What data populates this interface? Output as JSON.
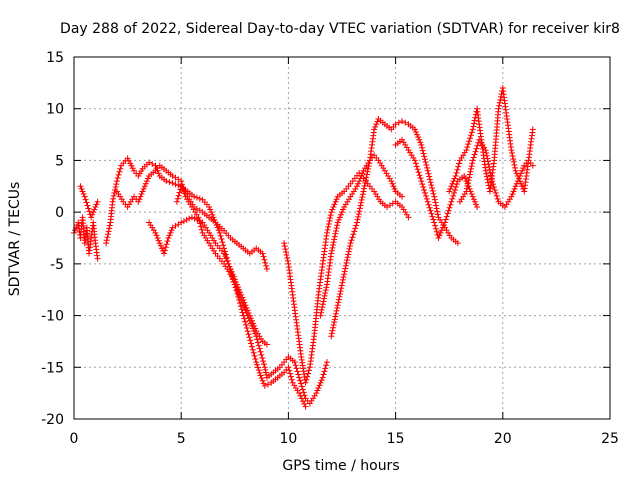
{
  "chart_data": {
    "type": "scatter",
    "title": "Day 288 of 2022, Sidereal Day-to-day VTEC variation (SDTVAR) for receiver kir8",
    "xlabel": "GPS time / hours",
    "ylabel": "SDTVAR / TECUs",
    "xlim": [
      0,
      25
    ],
    "ylim": [
      -20,
      15
    ],
    "xticks": [
      0,
      5,
      10,
      15,
      20,
      25
    ],
    "yticks": [
      -20,
      -15,
      -10,
      -5,
      0,
      5,
      10,
      15
    ],
    "xtick_labels": [
      "0",
      "5",
      "10",
      "15",
      "20",
      "25"
    ],
    "ytick_labels": [
      "-20",
      "-15",
      "-10",
      "-5",
      "0",
      "5",
      "10",
      "15"
    ],
    "grid": true,
    "marker": "plus",
    "color": "#ff0000",
    "series": [
      {
        "values": [
          [
            0.0,
            -2.0
          ],
          [
            0.2,
            -1.0
          ],
          [
            0.3,
            -2.5
          ],
          [
            0.4,
            -0.5
          ],
          [
            0.5,
            -3.0
          ],
          [
            0.6,
            -1.5
          ],
          [
            0.7,
            -4.0
          ],
          [
            0.8,
            -2.5
          ],
          [
            0.9,
            -1.0
          ],
          [
            1.0,
            -3.0
          ],
          [
            1.1,
            -4.5
          ]
        ]
      },
      {
        "values": [
          [
            0.3,
            2.5
          ],
          [
            0.5,
            1.5
          ],
          [
            0.8,
            -0.5
          ],
          [
            1.0,
            0.5
          ],
          [
            1.1,
            1.0
          ]
        ]
      },
      {
        "values": [
          [
            1.5,
            -3.0
          ],
          [
            1.7,
            -1.0
          ],
          [
            1.8,
            1.0
          ],
          [
            2.0,
            3.0
          ],
          [
            2.2,
            4.5
          ],
          [
            2.5,
            5.2
          ],
          [
            2.8,
            4.0
          ],
          [
            3.0,
            3.5
          ],
          [
            3.2,
            4.2
          ],
          [
            3.5,
            4.8
          ],
          [
            3.8,
            4.5
          ],
          [
            4.0,
            3.5
          ],
          [
            4.3,
            3.0
          ],
          [
            4.6,
            2.8
          ],
          [
            5.0,
            2.5
          ],
          [
            5.3,
            1.5
          ],
          [
            5.6,
            0.5
          ],
          [
            6.0,
            0.0
          ],
          [
            6.3,
            -0.5
          ],
          [
            6.6,
            -1.0
          ],
          [
            7.0,
            -1.8
          ],
          [
            7.3,
            -2.5
          ],
          [
            7.6,
            -3.0
          ],
          [
            7.9,
            -3.5
          ],
          [
            8.2,
            -4.0
          ],
          [
            8.5,
            -3.5
          ],
          [
            8.8,
            -4.0
          ],
          [
            9.0,
            -5.5
          ]
        ]
      },
      {
        "values": [
          [
            2.0,
            2.0
          ],
          [
            2.3,
            1.0
          ],
          [
            2.5,
            0.5
          ],
          [
            2.8,
            1.5
          ],
          [
            3.0,
            1.0
          ],
          [
            3.2,
            2.0
          ],
          [
            3.5,
            3.5
          ],
          [
            3.8,
            4.0
          ],
          [
            4.0,
            4.5
          ],
          [
            4.3,
            4.0
          ],
          [
            4.6,
            3.5
          ],
          [
            5.0,
            3.0
          ],
          [
            5.2,
            1.5
          ],
          [
            5.5,
            0.5
          ],
          [
            5.8,
            -0.5
          ],
          [
            6.0,
            -2.0
          ],
          [
            6.3,
            -3.0
          ],
          [
            6.6,
            -4.0
          ],
          [
            7.0,
            -5.0
          ],
          [
            7.3,
            -6.0
          ],
          [
            7.6,
            -7.5
          ],
          [
            7.9,
            -9.0
          ],
          [
            8.2,
            -10.5
          ],
          [
            8.5,
            -12.0
          ],
          [
            8.7,
            -13.5
          ],
          [
            8.9,
            -15.0
          ],
          [
            9.0,
            -16.0
          ],
          [
            9.3,
            -15.5
          ],
          [
            9.6,
            -15.0
          ],
          [
            9.8,
            -14.5
          ],
          [
            10.0,
            -14.0
          ],
          [
            10.3,
            -14.5
          ],
          [
            10.5,
            -16.0
          ],
          [
            10.8,
            -18.0
          ],
          [
            11.0,
            -18.5
          ],
          [
            11.3,
            -17.5
          ],
          [
            11.6,
            -16.0
          ],
          [
            11.8,
            -14.5
          ]
        ]
      },
      {
        "values": [
          [
            4.8,
            1.0
          ],
          [
            5.0,
            2.5
          ],
          [
            5.3,
            2.0
          ],
          [
            5.6,
            1.5
          ],
          [
            6.0,
            1.2
          ],
          [
            6.3,
            0.5
          ],
          [
            6.5,
            -0.5
          ],
          [
            6.8,
            -2.0
          ],
          [
            7.0,
            -3.5
          ],
          [
            7.2,
            -5.0
          ],
          [
            7.5,
            -7.0
          ],
          [
            7.7,
            -8.5
          ],
          [
            7.9,
            -10.0
          ],
          [
            8.1,
            -11.5
          ],
          [
            8.3,
            -13.0
          ],
          [
            8.5,
            -14.5
          ],
          [
            8.7,
            -15.8
          ],
          [
            8.9,
            -16.8
          ],
          [
            9.2,
            -16.5
          ],
          [
            9.5,
            -16.0
          ],
          [
            9.8,
            -15.5
          ],
          [
            10.0,
            -15.0
          ],
          [
            10.2,
            -16.5
          ],
          [
            10.5,
            -17.5
          ],
          [
            10.8,
            -18.8
          ]
        ]
      },
      {
        "values": [
          [
            3.5,
            -1.0
          ],
          [
            3.8,
            -2.0
          ],
          [
            4.0,
            -3.0
          ],
          [
            4.2,
            -4.0
          ],
          [
            4.4,
            -2.5
          ],
          [
            4.6,
            -1.5
          ],
          [
            5.0,
            -1.0
          ],
          [
            5.5,
            -0.5
          ],
          [
            6.0,
            -1.0
          ],
          [
            6.3,
            -2.0
          ],
          [
            6.6,
            -3.0
          ],
          [
            7.0,
            -4.0
          ],
          [
            7.3,
            -5.5
          ],
          [
            7.6,
            -7.0
          ],
          [
            7.9,
            -8.5
          ],
          [
            8.2,
            -10.0
          ],
          [
            8.5,
            -11.5
          ],
          [
            8.8,
            -12.5
          ],
          [
            9.0,
            -12.8
          ]
        ]
      },
      {
        "values": [
          [
            9.8,
            -3.0
          ],
          [
            10.0,
            -5.0
          ],
          [
            10.2,
            -8.0
          ],
          [
            10.4,
            -11.0
          ],
          [
            10.6,
            -14.0
          ],
          [
            10.8,
            -16.5
          ],
          [
            11.0,
            -15.0
          ],
          [
            11.2,
            -12.0
          ],
          [
            11.4,
            -8.0
          ],
          [
            11.6,
            -5.0
          ],
          [
            11.8,
            -2.0
          ],
          [
            12.0,
            0.0
          ],
          [
            12.3,
            1.5
          ],
          [
            12.6,
            2.0
          ],
          [
            13.0,
            3.0
          ],
          [
            13.3,
            3.8
          ],
          [
            13.6,
            3.0
          ],
          [
            14.0,
            2.0
          ],
          [
            14.3,
            1.0
          ],
          [
            14.6,
            0.5
          ],
          [
            15.0,
            1.0
          ],
          [
            15.3,
            0.5
          ],
          [
            15.6,
            -0.5
          ]
        ]
      },
      {
        "values": [
          [
            11.5,
            -10.0
          ],
          [
            11.8,
            -7.0
          ],
          [
            12.0,
            -4.0
          ],
          [
            12.3,
            -1.0
          ],
          [
            12.6,
            0.5
          ],
          [
            12.9,
            1.5
          ],
          [
            13.2,
            2.5
          ],
          [
            13.5,
            4.0
          ],
          [
            13.8,
            5.0
          ],
          [
            14.0,
            5.5
          ],
          [
            14.2,
            5.0
          ],
          [
            14.5,
            4.0
          ],
          [
            14.8,
            3.0
          ],
          [
            15.0,
            2.0
          ],
          [
            15.3,
            1.5
          ]
        ]
      },
      {
        "values": [
          [
            12.0,
            -12.0
          ],
          [
            12.3,
            -9.0
          ],
          [
            12.6,
            -6.0
          ],
          [
            12.9,
            -3.0
          ],
          [
            13.2,
            -1.0
          ],
          [
            13.5,
            2.0
          ],
          [
            13.8,
            5.0
          ],
          [
            14.0,
            8.0
          ],
          [
            14.2,
            9.0
          ],
          [
            14.5,
            8.5
          ],
          [
            14.8,
            8.0
          ],
          [
            15.0,
            8.5
          ],
          [
            15.3,
            8.8
          ],
          [
            15.6,
            8.5
          ],
          [
            15.9,
            8.0
          ],
          [
            16.2,
            6.5
          ],
          [
            16.5,
            4.0
          ],
          [
            16.8,
            1.5
          ],
          [
            17.0,
            -0.5
          ],
          [
            17.3,
            -1.5
          ],
          [
            17.6,
            -2.5
          ],
          [
            17.9,
            -3.0
          ]
        ]
      },
      {
        "values": [
          [
            15.0,
            6.5
          ],
          [
            15.3,
            7.0
          ],
          [
            15.6,
            6.0
          ],
          [
            15.9,
            5.0
          ],
          [
            16.2,
            3.0
          ],
          [
            16.5,
            1.0
          ],
          [
            16.8,
            -1.0
          ],
          [
            17.0,
            -2.5
          ],
          [
            17.3,
            -1.0
          ],
          [
            17.6,
            1.0
          ],
          [
            17.9,
            3.0
          ],
          [
            18.2,
            3.5
          ],
          [
            18.5,
            2.0
          ],
          [
            18.8,
            0.5
          ]
        ]
      },
      {
        "values": [
          [
            17.5,
            2.0
          ],
          [
            17.8,
            3.5
          ],
          [
            18.0,
            5.0
          ],
          [
            18.3,
            6.0
          ],
          [
            18.6,
            8.0
          ],
          [
            18.8,
            10.0
          ],
          [
            19.0,
            7.0
          ],
          [
            19.2,
            4.0
          ],
          [
            19.4,
            2.0
          ],
          [
            19.6,
            5.0
          ],
          [
            19.8,
            10.0
          ],
          [
            20.0,
            12.0
          ],
          [
            20.2,
            9.0
          ],
          [
            20.4,
            6.0
          ],
          [
            20.6,
            4.0
          ],
          [
            20.8,
            3.0
          ],
          [
            21.0,
            2.0
          ],
          [
            21.2,
            5.0
          ],
          [
            21.4,
            8.0
          ]
        ]
      },
      {
        "values": [
          [
            18.0,
            1.0
          ],
          [
            18.3,
            2.0
          ],
          [
            18.6,
            5.0
          ],
          [
            18.9,
            7.0
          ],
          [
            19.2,
            6.0
          ],
          [
            19.5,
            3.0
          ],
          [
            19.8,
            1.0
          ],
          [
            20.1,
            0.5
          ],
          [
            20.4,
            1.5
          ],
          [
            20.7,
            3.0
          ],
          [
            21.0,
            4.5
          ],
          [
            21.2,
            5.0
          ],
          [
            21.4,
            4.5
          ]
        ]
      }
    ]
  }
}
